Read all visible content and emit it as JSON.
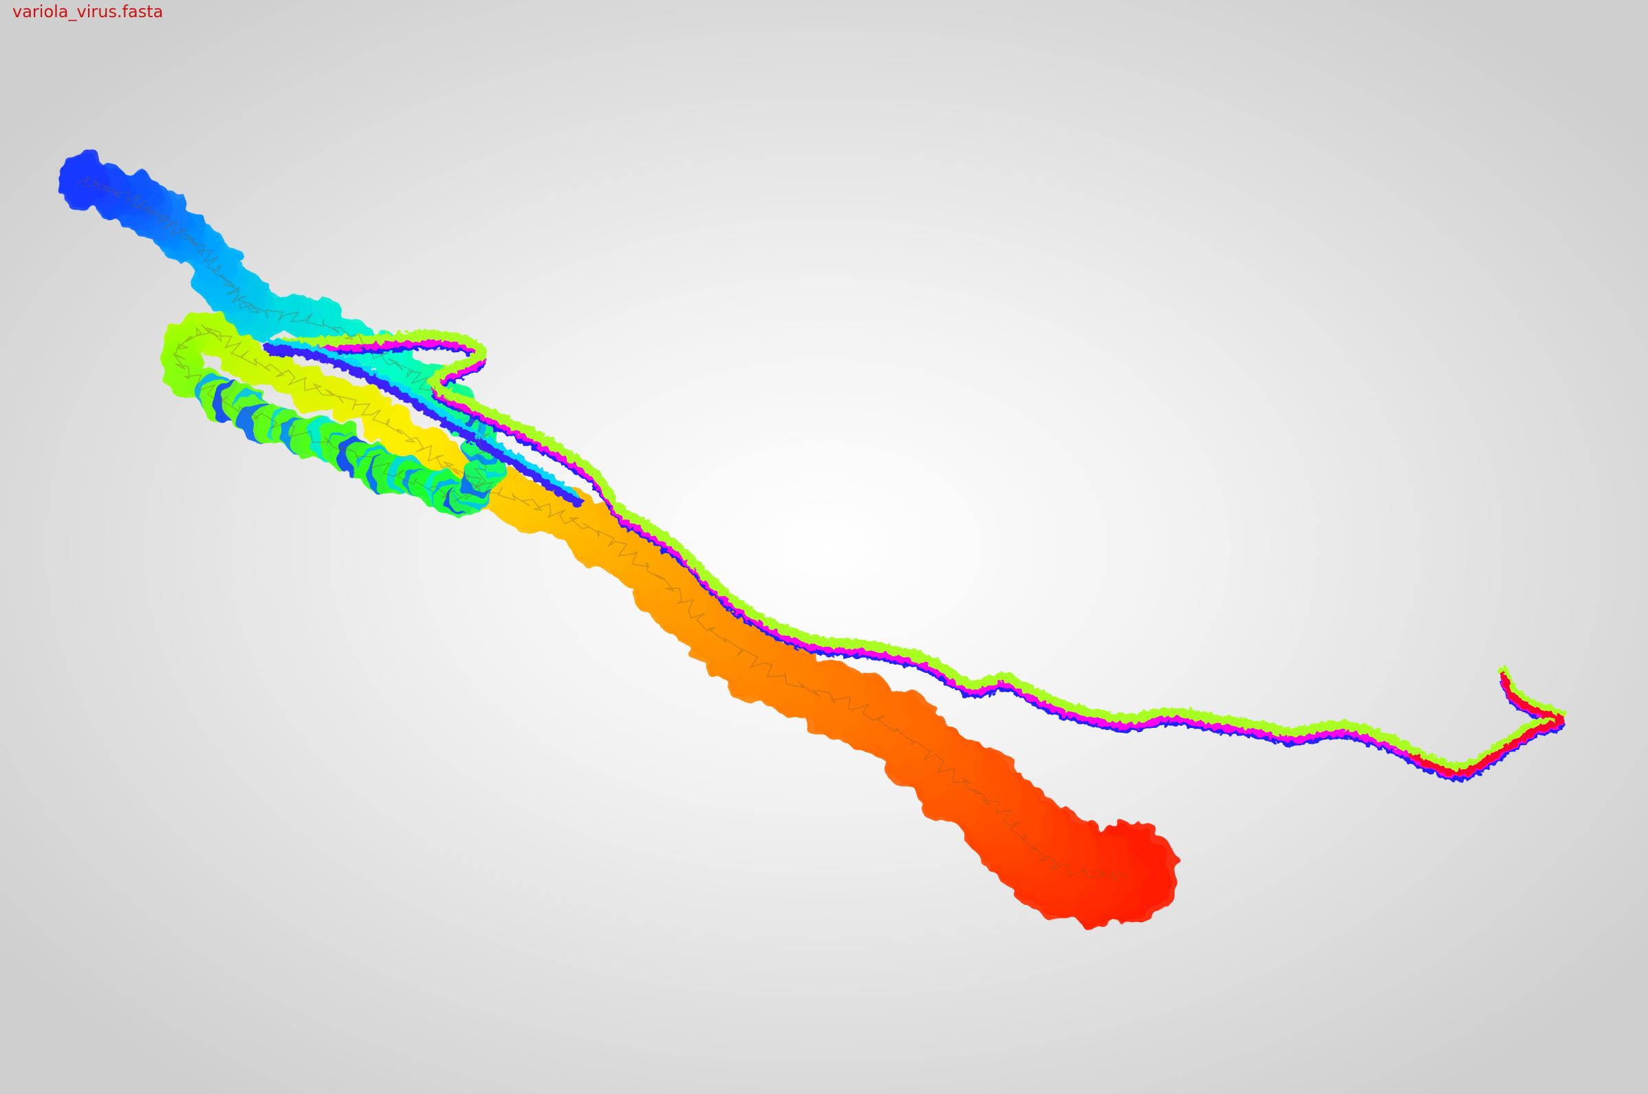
{
  "viewer": {
    "file_name": "variola_virus.fasta"
  },
  "visualization": {
    "icon": "dna-walk-3d-curve",
    "color_gradient": [
      "#ff1a00",
      "#ff6a00",
      "#ffaa00",
      "#ffee00",
      "#aaff00",
      "#22ff22",
      "#00ffcc",
      "#00aaff",
      "#1a1aff",
      "#8800ff",
      "#ff00ff"
    ],
    "thin_strand_colors": {
      "outer": "#aaff22",
      "inner": "#ff00ee",
      "shadow": "#2222ff",
      "tail": "#ff0033"
    }
  }
}
